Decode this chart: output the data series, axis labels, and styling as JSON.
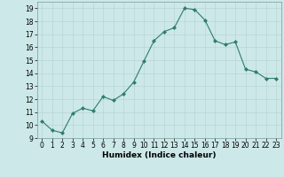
{
  "x": [
    0,
    1,
    2,
    3,
    4,
    5,
    6,
    7,
    8,
    9,
    10,
    11,
    12,
    13,
    14,
    15,
    16,
    17,
    18,
    19,
    20,
    21,
    22,
    23
  ],
  "y": [
    10.3,
    9.6,
    9.4,
    10.9,
    11.3,
    11.1,
    12.2,
    11.9,
    12.4,
    13.3,
    14.9,
    16.5,
    17.2,
    17.5,
    19.0,
    18.9,
    18.1,
    16.5,
    16.2,
    16.4,
    14.3,
    14.1,
    13.6,
    13.6
  ],
  "xlabel": "Humidex (Indice chaleur)",
  "ylim": [
    9,
    19.5
  ],
  "xlim": [
    -0.5,
    23.5
  ],
  "yticks": [
    9,
    10,
    11,
    12,
    13,
    14,
    15,
    16,
    17,
    18,
    19
  ],
  "xticks": [
    0,
    1,
    2,
    3,
    4,
    5,
    6,
    7,
    8,
    9,
    10,
    11,
    12,
    13,
    14,
    15,
    16,
    17,
    18,
    19,
    20,
    21,
    22,
    23
  ],
  "line_color": "#2e7d6e",
  "marker": "D",
  "marker_size": 2,
  "bg_color": "#cce8e8",
  "grid_color": "#b8d4d4",
  "xlabel_fontsize": 6.5,
  "tick_fontsize": 5.5
}
